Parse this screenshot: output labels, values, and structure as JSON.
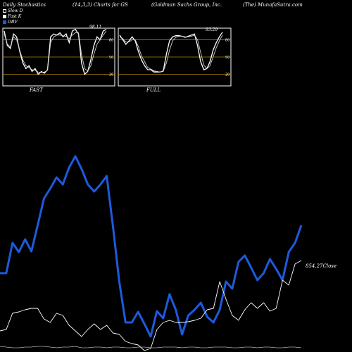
{
  "header": {
    "title": "Daily Stochastics",
    "params": "(14,3,3) Charts for GS",
    "company": "(Goldman  Sachs Group, Inc.",
    "site": "(The) MunafaSutra.com"
  },
  "legend": [
    {
      "label": "Slow  D",
      "color": "#000000"
    },
    {
      "label": "Fast K",
      "color": "#ffffff"
    },
    {
      "label": "OBV",
      "color": "#1e5adc"
    }
  ],
  "colors": {
    "obv": "#1e5adc",
    "level_line": "#b8860b",
    "panel_bg": "#000000"
  },
  "chart_data": [
    {
      "type": "line",
      "name": "FAST",
      "ylim": [
        0,
        100
      ],
      "levels": [
        20,
        50,
        80
      ],
      "level_labels": [
        "80",
        "50",
        "20"
      ],
      "last_value_label": "98.11",
      "series": [
        {
          "values": [
            95,
            70,
            65,
            90,
            85,
            60,
            40,
            30,
            35,
            25,
            30,
            20,
            25,
            22,
            28,
            85,
            90,
            88,
            92,
            85,
            90,
            75,
            95,
            98,
            90,
            40,
            20,
            25,
            45,
            70,
            85,
            80,
            95,
            98
          ]
        },
        {
          "values": [
            90,
            72,
            68,
            85,
            80,
            62,
            45,
            35,
            32,
            28,
            27,
            24,
            23,
            24,
            27,
            75,
            85,
            88,
            88,
            87,
            86,
            82,
            88,
            92,
            92,
            55,
            30,
            26,
            35,
            55,
            72,
            80,
            88,
            95
          ]
        }
      ]
    },
    {
      "type": "line",
      "name": "FULL",
      "ylim": [
        0,
        100
      ],
      "levels": [
        20,
        50,
        80
      ],
      "level_labels": [
        "80",
        "50",
        "20"
      ],
      "last_value_label": "93.29",
      "series": [
        {
          "values": [
            88,
            80,
            72,
            78,
            85,
            78,
            60,
            45,
            35,
            28,
            28,
            24,
            24,
            24,
            26,
            55,
            78,
            85,
            87,
            87,
            86,
            84,
            86,
            88,
            90,
            70,
            42,
            28,
            30,
            42,
            62,
            75,
            85,
            93
          ]
        },
        {
          "values": [
            85,
            82,
            76,
            76,
            80,
            80,
            68,
            52,
            42,
            32,
            29,
            26,
            25,
            24,
            25,
            40,
            62,
            78,
            84,
            86,
            86,
            85,
            85,
            86,
            88,
            80,
            58,
            36,
            30,
            35,
            50,
            66,
            78,
            88
          ]
        }
      ]
    },
    {
      "type": "line",
      "name": "OBV",
      "close_label": "854.27Close",
      "series": [
        {
          "name": "OBV",
          "values": [
            388,
            388,
            345,
            358,
            340,
            357,
            320,
            282,
            268,
            252,
            262,
            238,
            222,
            240,
            262,
            272,
            262,
            250,
            322,
            400,
            458,
            458,
            443,
            460,
            478,
            442,
            452,
            418,
            440,
            475,
            448,
            440,
            430,
            450,
            458,
            440,
            400,
            410,
            372,
            363,
            380,
            398,
            388,
            368,
            382,
            398,
            358,
            345,
            320
          ]
        },
        {
          "name": "Price",
          "values": [
            470,
            468,
            445,
            443,
            440,
            438,
            438,
            453,
            458,
            445,
            448,
            462,
            470,
            478,
            468,
            460,
            468,
            462,
            473,
            475,
            485,
            488,
            490,
            498,
            495,
            468,
            458,
            455,
            458,
            458,
            457,
            455,
            452,
            440,
            438,
            400,
            425,
            448,
            455,
            440,
            430,
            438,
            430,
            442,
            438,
            398,
            405,
            375,
            370
          ]
        },
        {
          "name": "Volume",
          "values": [
            492,
            493,
            494,
            494,
            493,
            493,
            492,
            492,
            493,
            494,
            493,
            493,
            492,
            494,
            494,
            493,
            493,
            494,
            493,
            493,
            494,
            494,
            493,
            493,
            494,
            494,
            493,
            493,
            493,
            494,
            493,
            493,
            494,
            494,
            493,
            493,
            493,
            494,
            494,
            493,
            493,
            494,
            493,
            493,
            494,
            494,
            493,
            493,
            494
          ]
        }
      ]
    }
  ]
}
